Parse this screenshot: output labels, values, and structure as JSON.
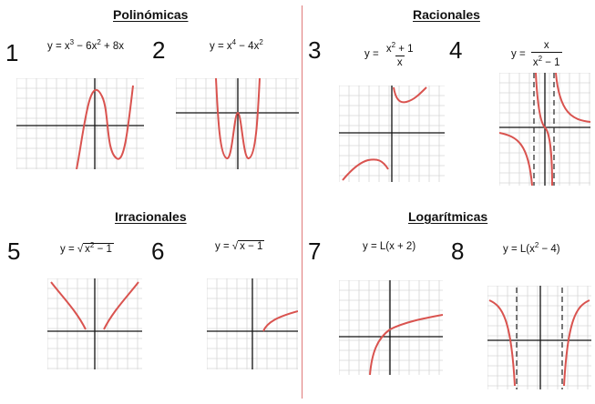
{
  "sections": {
    "polinomicas": "Polinómicas",
    "racionales": "Racionales",
    "irracionales": "Irracionales",
    "logaritmicas": "Logarítmicas"
  },
  "numbers": [
    "1",
    "2",
    "3",
    "4",
    "5",
    "6",
    "7",
    "8"
  ],
  "eq": {
    "e1": {
      "pre": "y = x",
      "e1": "3",
      "m1": " − 6x",
      "e2": "2",
      "m2": " + 8x"
    },
    "e2": {
      "pre": "y = x",
      "e1": "4",
      "m1": " − 4x",
      "e2": "2"
    },
    "e3": {
      "pre": "y =",
      "n1": "x",
      "n1e": "2",
      "n2": " + 1",
      "den": "x"
    },
    "e4": {
      "pre": "y =",
      "num": "x",
      "d1": "x",
      "d1e": "2",
      "d2": " − 1"
    },
    "e5": {
      "pre": "y = ",
      "root": "√",
      "r1": "x",
      "r1e": "2",
      "r2": " − 1"
    },
    "e6": {
      "pre": "y = ",
      "root": "√",
      "r1": "x − 1"
    },
    "e7": {
      "text": "y = L(x + 2)"
    },
    "e8": {
      "pre": "y = L(x",
      "e1": "2",
      "post": " − 4)"
    }
  },
  "colors": {
    "curve": "#d9534f",
    "grid": "#d6d6d6",
    "axis": "#111111",
    "divider": "#e07a7a"
  }
}
